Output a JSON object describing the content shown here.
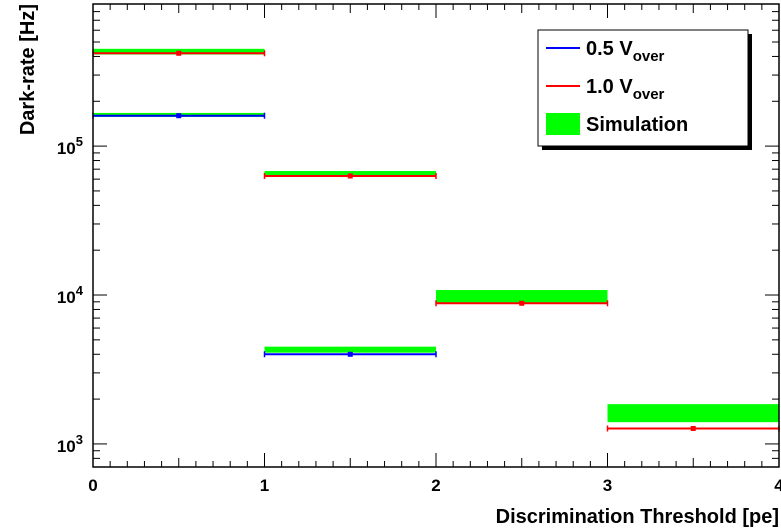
{
  "chart_data": {
    "type": "scatter",
    "title": "",
    "xlabel": "Discrimination Threshold [pe]",
    "ylabel": "Dark-rate [Hz]",
    "xlim": [
      0,
      4
    ],
    "ylim": [
      700,
      900000
    ],
    "yscale": "log",
    "grid": false,
    "legend_position": "top-right",
    "x_ticks": [
      "0",
      "1",
      "2",
      "3",
      "4"
    ],
    "y_ticks": [
      {
        "value": 1000,
        "base": "10",
        "exp": "3"
      },
      {
        "value": 10000,
        "base": "10",
        "exp": "4"
      },
      {
        "value": 100000,
        "base": "10",
        "exp": "5"
      }
    ],
    "legend": [
      {
        "label": "0.5 V",
        "sub": "over",
        "kind": "line",
        "color": "#0000ff"
      },
      {
        "label": "1.0 V",
        "sub": "over",
        "kind": "line",
        "color": "#ff0000"
      },
      {
        "label": "Simulation",
        "sub": "",
        "kind": "box",
        "color": "#00ff00"
      }
    ],
    "series": [
      {
        "name": "0.5 V over",
        "color": "#0000ff",
        "points": [
          {
            "x": 0.5,
            "xerr": 0.5,
            "y": 160000,
            "yerr": 2000
          },
          {
            "x": 1.5,
            "xerr": 0.5,
            "y": 4000,
            "yerr": 100
          }
        ]
      },
      {
        "name": "1.0 V over",
        "color": "#ff0000",
        "points": [
          {
            "x": 0.5,
            "xerr": 0.5,
            "y": 420000,
            "yerr": 9000
          },
          {
            "x": 1.5,
            "xerr": 0.5,
            "y": 63000,
            "yerr": 1000
          },
          {
            "x": 2.5,
            "xerr": 0.5,
            "y": 8800,
            "yerr": 250
          },
          {
            "x": 3.5,
            "xerr": 0.5,
            "y": 1270,
            "yerr": 40
          }
        ]
      },
      {
        "name": "Simulation",
        "color": "#00ff00",
        "bands": [
          {
            "x0": 0,
            "x1": 1,
            "ylo": 157000,
            "yhi": 167000
          },
          {
            "x0": 0,
            "x1": 1,
            "ylo": 412000,
            "yhi": 450000
          },
          {
            "x0": 1,
            "x1": 2,
            "ylo": 4100,
            "yhi": 4500
          },
          {
            "x0": 1,
            "x1": 2,
            "ylo": 62000,
            "yhi": 68000
          },
          {
            "x0": 2,
            "x1": 3,
            "ylo": 8900,
            "yhi": 10800
          },
          {
            "x0": 3,
            "x1": 4,
            "ylo": 1400,
            "yhi": 1850
          }
        ]
      }
    ]
  }
}
